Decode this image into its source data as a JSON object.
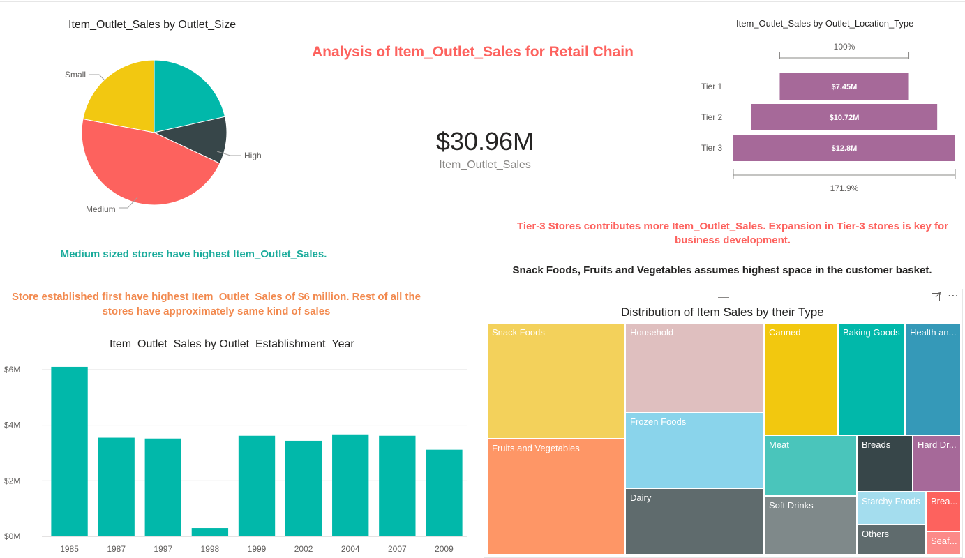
{
  "dashboard": {
    "title": "Analysis of Item_Outlet_Sales for Retail Chain",
    "title_color": "#fd625e"
  },
  "kpi": {
    "value": "$30.96M",
    "label": "Item_Outlet_Sales"
  },
  "insights": {
    "outlet_size": "Medium sized stores have highest Item_Outlet_Sales.",
    "outlet_size_color": "#1aab9b",
    "establishment": "Store established first have highest Item_Outlet_Sales of $6 million. Rest of all the stores have approximately same kind of sales",
    "establishment_color": "#f2894e",
    "tier": "Tier-3 Stores contributes more Item_Outlet_Sales. Expansion in Tier-3 stores is key for business development.",
    "tier_color": "#fd625e",
    "basket": "Snack Foods, Fruits and Vegetables assumes highest space in the customer basket."
  },
  "chart_data": [
    {
      "type": "pie",
      "title": "Item_Outlet_Sales by Outlet_Size",
      "slices": [
        {
          "name": "Small",
          "value": 22.0,
          "color": "#f2c811"
        },
        {
          "name": "High",
          "value": 10.5,
          "color": "#374649"
        },
        {
          "name": "Medium",
          "value": 46.0,
          "color": "#fd625e"
        }
      ],
      "extra_slice": {
        "value": 21.5,
        "color": "#01b8aa"
      },
      "labels": [
        "Small",
        "High",
        "Medium"
      ]
    },
    {
      "type": "funnel",
      "title": "Item_Outlet_Sales by Outlet_Location_Type",
      "categories": [
        "Tier 1",
        "Tier 2",
        "Tier 3"
      ],
      "values": [
        7.45,
        10.72,
        12.8
      ],
      "value_labels": [
        "$7.45M",
        "$10.72M",
        "$12.8M"
      ],
      "top_percent": "100%",
      "bottom_percent": "171.9%",
      "color": "#a66999"
    },
    {
      "type": "bar",
      "title": "Item_Outlet_Sales by Outlet_Establishment_Year",
      "categories": [
        "1985",
        "1987",
        "1997",
        "1998",
        "1999",
        "2002",
        "2004",
        "2007",
        "2009"
      ],
      "values": [
        6.1,
        3.55,
        3.52,
        0.3,
        3.62,
        3.44,
        3.67,
        3.62,
        3.12
      ],
      "yticks": [
        "$0M",
        "$2M",
        "$4M",
        "$6M"
      ],
      "ylim": [
        0,
        6.5
      ],
      "grid": true,
      "color": "#01b8aa"
    },
    {
      "type": "treemap",
      "title": "Distribution of Item Sales by their Type",
      "items": [
        {
          "name": "Snack Foods",
          "color": "#f3d15b"
        },
        {
          "name": "Fruits and Vegetables",
          "color": "#fe9666"
        },
        {
          "name": "Household",
          "color": "#dfbfbf"
        },
        {
          "name": "Frozen Foods",
          "color": "#8ad4eb"
        },
        {
          "name": "Dairy",
          "color": "#5f6b6d"
        },
        {
          "name": "Canned",
          "color": "#f2c80f"
        },
        {
          "name": "Baking Goods",
          "color": "#01b8aa"
        },
        {
          "name": "Health an...",
          "color": "#3599b8"
        },
        {
          "name": "Meat",
          "color": "#4ac5bb"
        },
        {
          "name": "Breads",
          "color": "#374649"
        },
        {
          "name": "Hard Dr...",
          "color": "#a66999"
        },
        {
          "name": "Soft Drinks",
          "color": "#7f898a"
        },
        {
          "name": "Starchy Foods",
          "color": "#a4ddee"
        },
        {
          "name": "Brea...",
          "color": "#fd625e"
        },
        {
          "name": "Others",
          "color": "#5f6b6d"
        },
        {
          "name": "Seaf...",
          "color": "#fc8a88"
        }
      ]
    }
  ]
}
